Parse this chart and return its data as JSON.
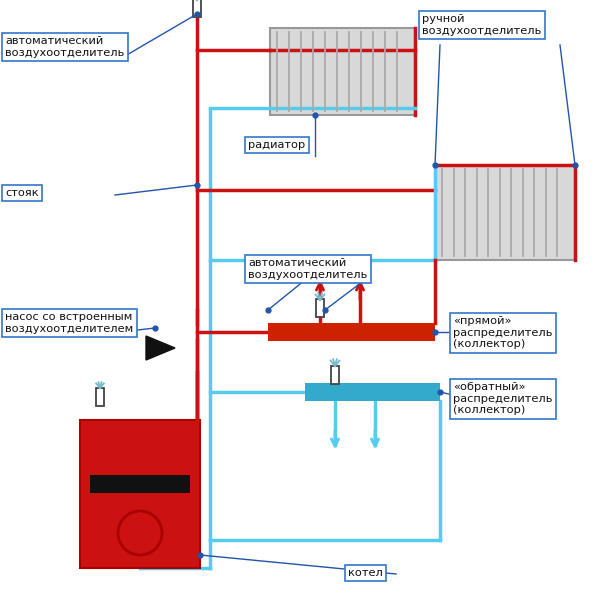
{
  "bg": "#ffffff",
  "red": "#cc1111",
  "blue": "#55ccee",
  "ann": "#2255aa",
  "gray_rad": "#d8d8d8",
  "gray_line": "#aaaaaa",
  "boiler_red": "#cc1111",
  "boiler_dark": "#aa0000",
  "coll_red": "#cc2200",
  "coll_blue": "#33aacc",
  "lbl_edge": "#3377cc",
  "labels": {
    "auto_top": "автоматический\nвоздухоотделитель",
    "manual": "ручной\nвоздухоотделитель",
    "riser": "стояк",
    "radiator": "радиатор",
    "auto_mid": "автоматический\nвоздухоотделитель",
    "pump": "насос со встроенным\nвоздухоотделителем",
    "coll_dir": "«прямой»\nраспределитель\n(коллектор)",
    "coll_ret": "«обратный»\nраспределитель\n(коллектор)",
    "boiler": "котел"
  }
}
